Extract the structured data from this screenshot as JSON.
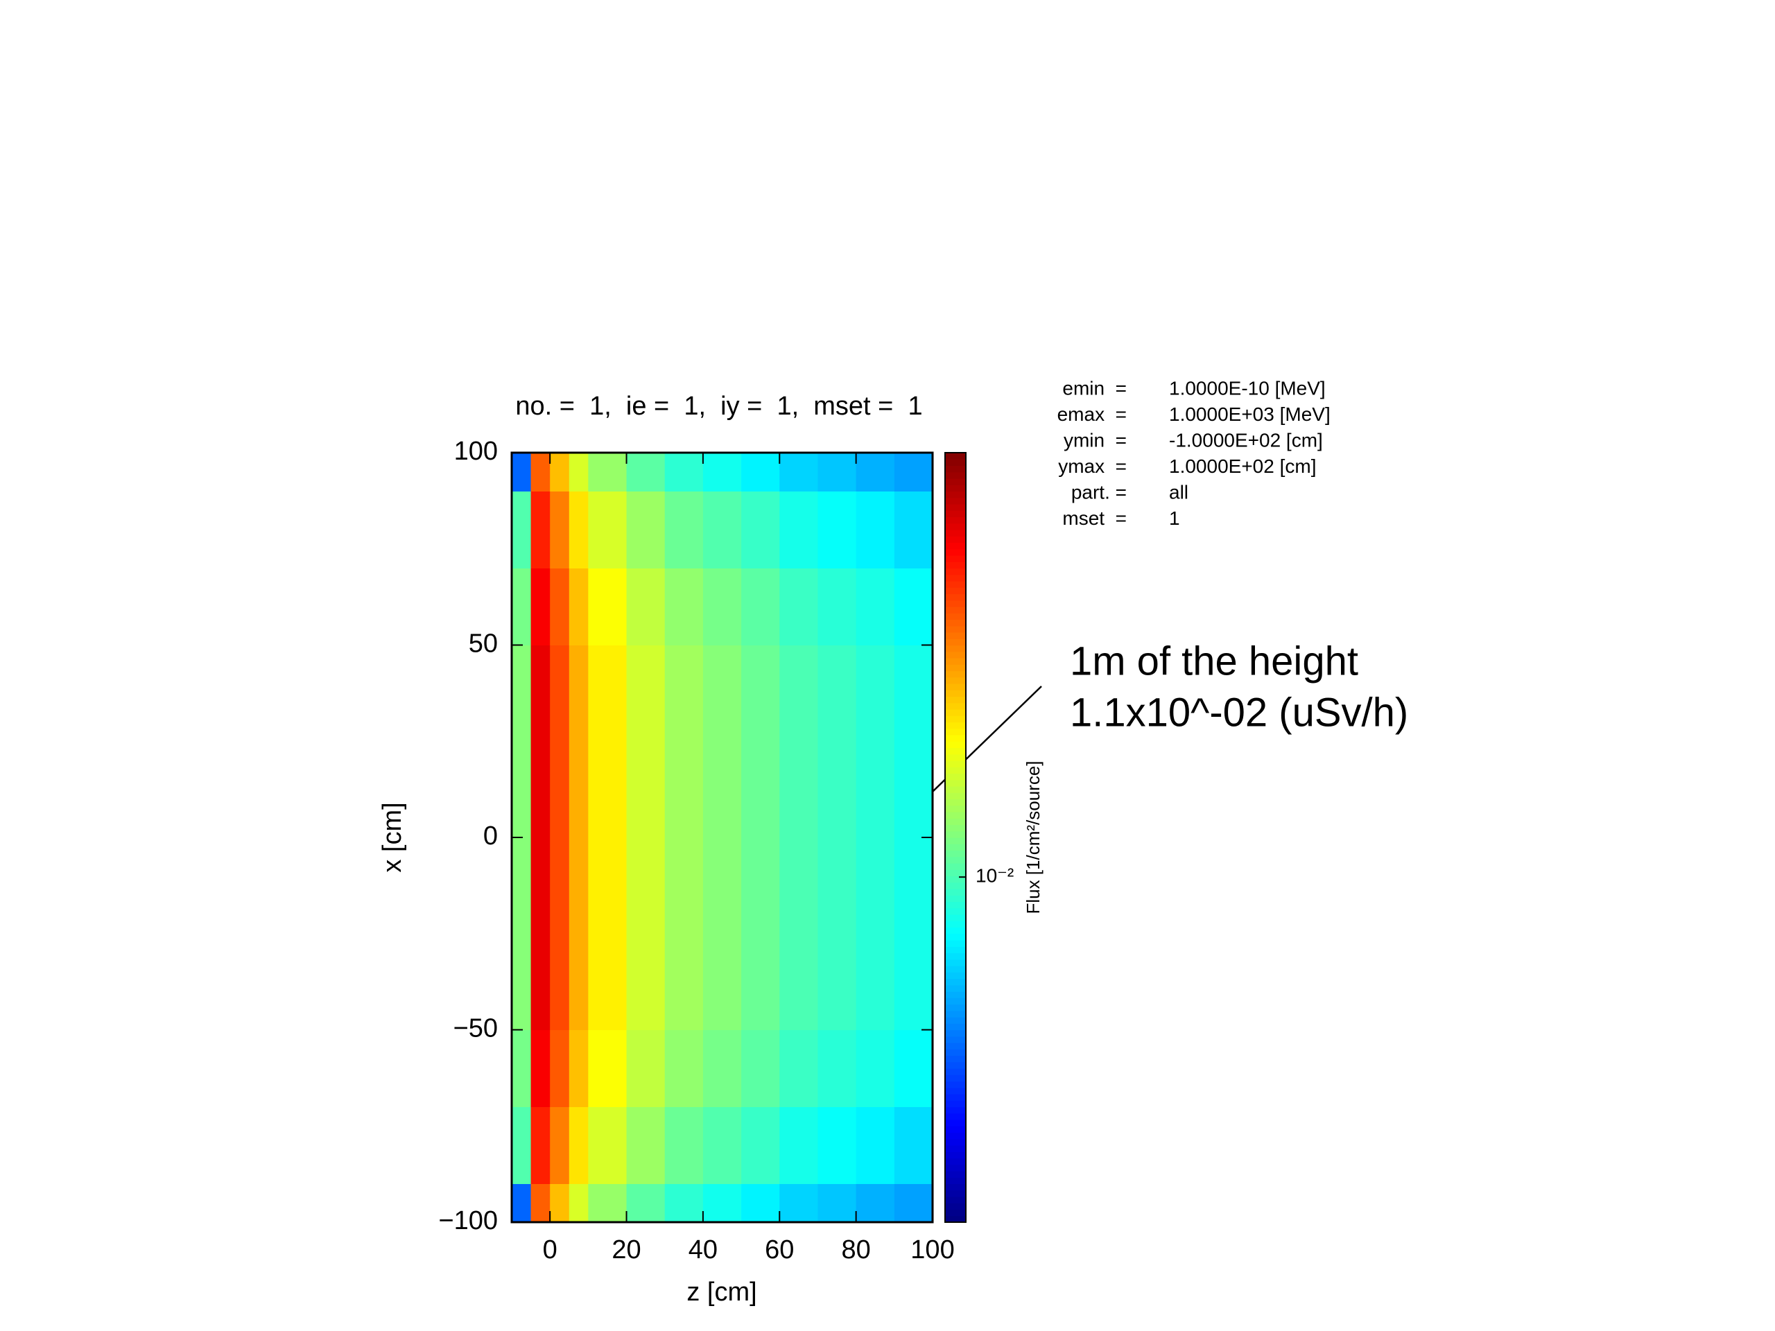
{
  "chart_data": {
    "type": "heatmap",
    "title": "no. =  1,  ie =  1,  iy =  1,  mset =  1",
    "x_label": "z [cm]",
    "y_label": "x [cm]",
    "xlim": [
      -10,
      100
    ],
    "xticks": [
      0,
      20,
      40,
      60,
      80,
      100
    ],
    "ylim": [
      -100,
      100
    ],
    "yticks": [
      {
        "value": -100,
        "label": "−100"
      },
      {
        "value": -50,
        "label": "−50"
      },
      0,
      50,
      100
    ],
    "xbins": [
      -10,
      -5,
      0,
      5,
      10,
      20,
      30,
      40,
      50,
      60,
      70,
      80,
      90,
      100
    ],
    "ybins": [
      -100,
      -90,
      -70,
      -50,
      -30,
      -10,
      10,
      30,
      50,
      70,
      90,
      100
    ],
    "values": [
      [
        0.005,
        0.028,
        0.021,
        0.0154,
        0.0126,
        0.0105,
        0.0091,
        0.0084,
        0.0077,
        0.007,
        0.0067,
        0.0063,
        0.006
      ],
      [
        0.0102,
        0.034,
        0.0255,
        0.0187,
        0.0153,
        0.0128,
        0.011,
        0.0102,
        0.0094,
        0.0085,
        0.0081,
        0.0077,
        0.0072
      ],
      [
        0.0114,
        0.038,
        0.0285,
        0.0209,
        0.0171,
        0.0143,
        0.0124,
        0.0114,
        0.0105,
        0.0095,
        0.009,
        0.0086,
        0.0081
      ],
      [
        0.012,
        0.04,
        0.03,
        0.022,
        0.018,
        0.015,
        0.013,
        0.012,
        0.011,
        0.01,
        0.0095,
        0.009,
        0.0085
      ],
      [
        0.012,
        0.04,
        0.03,
        0.022,
        0.018,
        0.015,
        0.013,
        0.012,
        0.011,
        0.01,
        0.0095,
        0.009,
        0.0085
      ],
      [
        0.012,
        0.04,
        0.03,
        0.022,
        0.018,
        0.015,
        0.013,
        0.012,
        0.011,
        0.01,
        0.0095,
        0.009,
        0.0085
      ],
      [
        0.012,
        0.04,
        0.03,
        0.022,
        0.018,
        0.015,
        0.013,
        0.012,
        0.011,
        0.01,
        0.0095,
        0.009,
        0.0085
      ],
      [
        0.012,
        0.04,
        0.03,
        0.022,
        0.018,
        0.015,
        0.013,
        0.012,
        0.011,
        0.01,
        0.0095,
        0.009,
        0.0085
      ],
      [
        0.0114,
        0.038,
        0.0285,
        0.0209,
        0.0171,
        0.0143,
        0.0124,
        0.0114,
        0.0105,
        0.0095,
        0.009,
        0.0086,
        0.0081
      ],
      [
        0.0102,
        0.034,
        0.0255,
        0.0187,
        0.0153,
        0.0128,
        0.011,
        0.0102,
        0.0094,
        0.0085,
        0.0081,
        0.0077,
        0.0072
      ],
      [
        0.005,
        0.028,
        0.021,
        0.0154,
        0.0126,
        0.0105,
        0.0091,
        0.0084,
        0.0077,
        0.007,
        0.0067,
        0.0063,
        0.006
      ]
    ],
    "colorbar": {
      "label": "Flux [1/cm²/source]",
      "log": true,
      "lim": [
        0.0025,
        0.055
      ],
      "ticks": [
        {
          "value": 0.01,
          "label": "10⁻²"
        }
      ],
      "colormap": "jet"
    },
    "info": [
      [
        "emin  =",
        "1.0000E-10 [MeV]"
      ],
      [
        "emax  =",
        "1.0000E+03 [MeV]"
      ],
      [
        "ymin  =",
        "-1.0000E+02 [cm]"
      ],
      [
        "ymax  =",
        "1.0000E+02 [cm]"
      ],
      [
        "part. =",
        "all"
      ],
      [
        "mset  =",
        "1"
      ]
    ],
    "annotation": [
      "1m of the height",
      "1.1x10^-02 (uSv/h)"
    ]
  }
}
